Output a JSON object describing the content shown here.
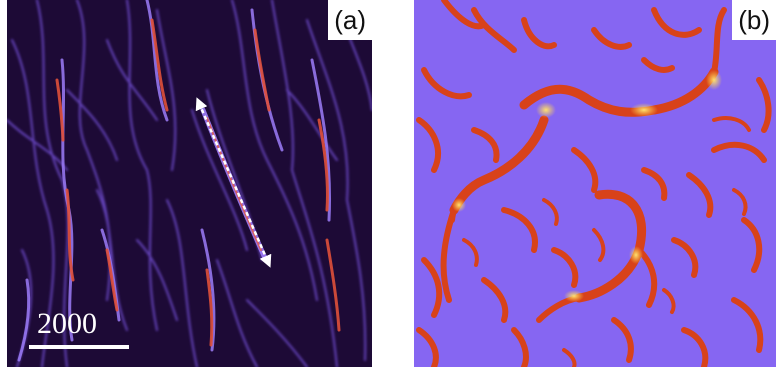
{
  "panels": [
    {
      "label": "(a)",
      "scale_bar_text": "2000"
    },
    {
      "label": "(b)"
    }
  ],
  "colors": {
    "panel_a_background": "#1d0a36",
    "panel_a_filament": "#8a62f0",
    "panel_a_core": "#e0503a",
    "panel_b_background": "#8666f2",
    "panel_b_filament": "#d8421a",
    "panel_b_hotspot": "#ffd64a",
    "arrow": "#ffffff"
  }
}
